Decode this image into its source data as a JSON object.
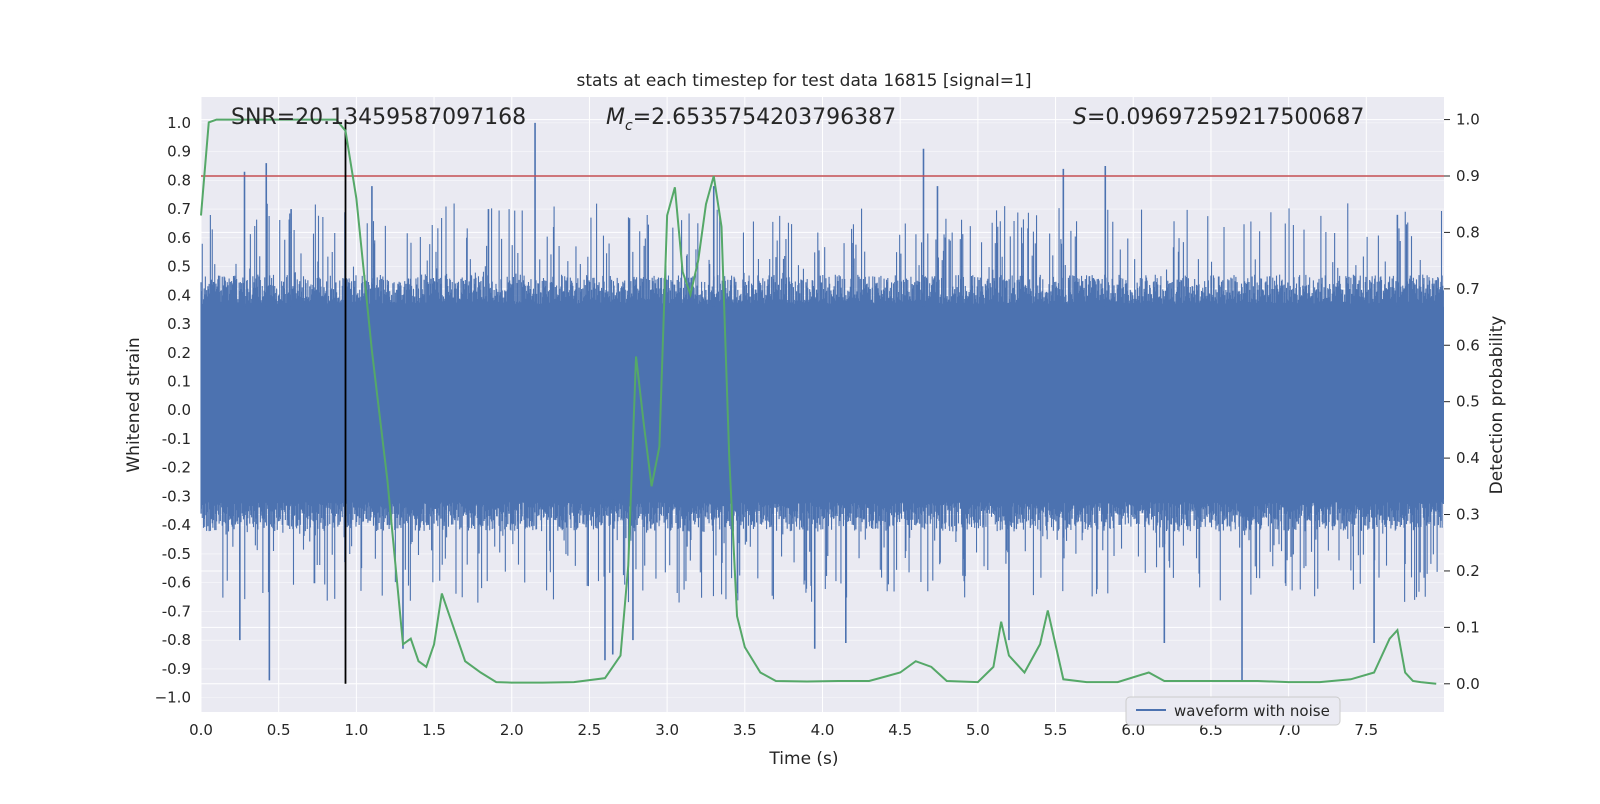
{
  "chart_data": {
    "type": "line",
    "title": "stats at each timestep for test data 16815 [signal=1]",
    "xlabel": "Time (s)",
    "ylabel_left": "Whitened strain",
    "ylabel_right": "Detection probability",
    "xlim": [
      0.0,
      8.0
    ],
    "ylim_left": [
      -1.05,
      1.09
    ],
    "ylim_right": [
      -0.05,
      1.04
    ],
    "x_ticks": [
      "0.0",
      "0.5",
      "1.0",
      "1.5",
      "2.0",
      "2.5",
      "3.0",
      "3.5",
      "4.0",
      "4.5",
      "5.0",
      "5.5",
      "6.0",
      "6.5",
      "7.0",
      "7.5"
    ],
    "y_ticks_left": [
      "1.0",
      "0.9",
      "0.8",
      "0.7",
      "0.6",
      "0.5",
      "0.4",
      "0.3",
      "0.2",
      "0.1",
      "0.0",
      "-0.1",
      "-0.2",
      "-0.3",
      "-0.4",
      "-0.5",
      "-0.6",
      "-0.7",
      "-0.8",
      "-0.9",
      "−1.0"
    ],
    "y_ticks_right": [
      "1.0",
      "0.9",
      "0.8",
      "0.7",
      "0.6",
      "0.5",
      "0.4",
      "0.3",
      "0.2",
      "0.1",
      "0.0"
    ],
    "annotations": {
      "snr": "SNR=20.13459587097168",
      "mc_symbol": "M",
      "mc_sub": "c",
      "mc_value": "=2.6535754203796387",
      "s_symbol": "S",
      "s_value": "=0.09697259217500687"
    },
    "threshold": 0.9,
    "marker_time": 0.93,
    "legend": [
      "waveform with noise"
    ],
    "series": [
      {
        "name": "waveform with noise",
        "axis": "left",
        "description": "dense whitened strain noise centered at 0",
        "band_low": -0.37,
        "band_high": 0.42,
        "spikes": [
          [
            0.28,
            0.83
          ],
          [
            0.42,
            0.86
          ],
          [
            0.44,
            -0.94
          ],
          [
            0.25,
            -0.8
          ],
          [
            0.58,
            0.7
          ],
          [
            0.93,
            -0.73
          ],
          [
            1.1,
            0.78
          ],
          [
            1.3,
            -0.83
          ],
          [
            2.15,
            1.0
          ],
          [
            1.85,
            0.7
          ],
          [
            2.6,
            -0.87
          ],
          [
            2.65,
            -0.85
          ],
          [
            2.78,
            -0.8
          ],
          [
            3.3,
            0.78
          ],
          [
            3.95,
            -0.83
          ],
          [
            4.15,
            -0.81
          ],
          [
            4.65,
            0.91
          ],
          [
            4.74,
            0.78
          ],
          [
            5.2,
            -0.8
          ],
          [
            5.55,
            0.84
          ],
          [
            5.82,
            0.85
          ],
          [
            6.2,
            -0.81
          ],
          [
            6.7,
            -0.94
          ],
          [
            7.55,
            -0.81
          ],
          [
            7.7,
            0.68
          ]
        ]
      },
      {
        "name": "detection probability",
        "axis": "right",
        "x": [
          0.0,
          0.05,
          0.1,
          0.3,
          0.5,
          0.7,
          0.87,
          0.93,
          1.0,
          1.1,
          1.2,
          1.3,
          1.35,
          1.4,
          1.45,
          1.5,
          1.55,
          1.6,
          1.7,
          1.8,
          1.9,
          2.0,
          2.2,
          2.4,
          2.6,
          2.7,
          2.75,
          2.8,
          2.85,
          2.9,
          2.95,
          3.0,
          3.05,
          3.1,
          3.15,
          3.2,
          3.25,
          3.3,
          3.35,
          3.4,
          3.45,
          3.5,
          3.6,
          3.7,
          3.9,
          4.1,
          4.3,
          4.5,
          4.6,
          4.7,
          4.8,
          5.0,
          5.1,
          5.15,
          5.2,
          5.3,
          5.4,
          5.45,
          5.55,
          5.7,
          5.9,
          6.1,
          6.2,
          6.4,
          6.6,
          6.8,
          7.0,
          7.2,
          7.4,
          7.55,
          7.65,
          7.7,
          7.75,
          7.8,
          7.85,
          7.95
        ],
        "values": [
          0.83,
          0.995,
          1.0,
          1.0,
          1.0,
          1.0,
          1.0,
          0.98,
          0.86,
          0.59,
          0.36,
          0.07,
          0.08,
          0.04,
          0.03,
          0.07,
          0.16,
          0.12,
          0.04,
          0.02,
          0.003,
          0.002,
          0.002,
          0.003,
          0.01,
          0.05,
          0.21,
          0.58,
          0.46,
          0.35,
          0.42,
          0.83,
          0.88,
          0.73,
          0.69,
          0.75,
          0.85,
          0.9,
          0.81,
          0.4,
          0.12,
          0.065,
          0.02,
          0.005,
          0.004,
          0.005,
          0.005,
          0.02,
          0.04,
          0.03,
          0.005,
          0.003,
          0.03,
          0.11,
          0.05,
          0.02,
          0.07,
          0.13,
          0.008,
          0.003,
          0.003,
          0.02,
          0.005,
          0.005,
          0.005,
          0.005,
          0.003,
          0.003,
          0.008,
          0.02,
          0.08,
          0.095,
          0.02,
          0.005,
          0.003,
          0.0
        ]
      }
    ]
  }
}
